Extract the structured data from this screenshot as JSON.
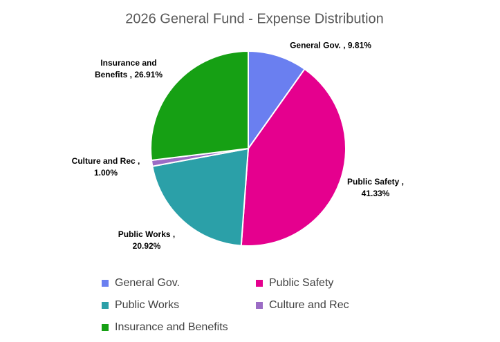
{
  "chart_data": {
    "type": "pie",
    "title": "2026 General Fund - Expense Distribution",
    "categories": [
      "General Gov.",
      "Public Safety",
      "Public Works",
      "Culture and Rec",
      "Insurance and Benefits"
    ],
    "values": [
      9.81,
      41.33,
      20.92,
      1.0,
      26.91
    ],
    "value_labels": [
      "General Gov. , 9.81%",
      "Public Safety , 41.33%",
      "Public Works , 20.92%",
      "Culture and Rec , 1.00%",
      "Insurance and Benefits , 26.91%"
    ],
    "colors": [
      "#6a7ff0",
      "#e5008e",
      "#2ba0a8",
      "#9b6cc5",
      "#16a014"
    ],
    "legend": "bottom"
  }
}
